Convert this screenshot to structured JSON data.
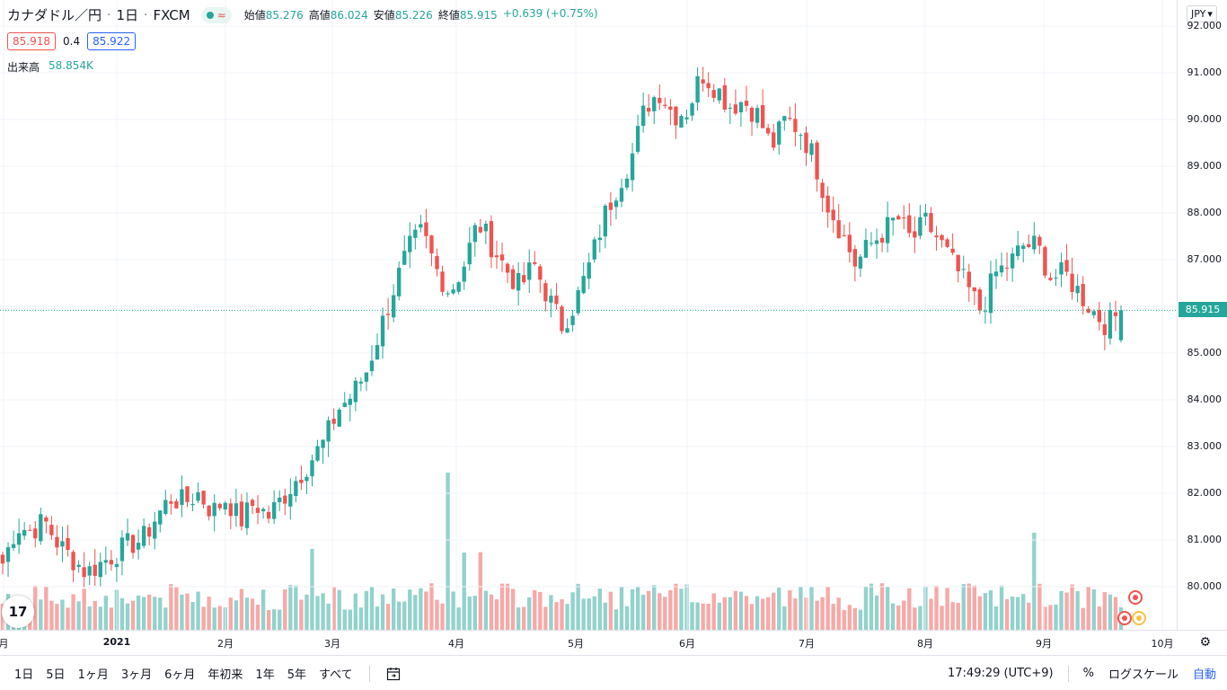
{
  "header": {
    "symbol": "カナダドル／円",
    "interval": "1日",
    "source": "FXCM",
    "wave_glyph": "≈",
    "ohlc": [
      {
        "label": "始値",
        "value": "85.276"
      },
      {
        "label": "高値",
        "value": "86.024"
      },
      {
        "label": "安値",
        "value": "85.226"
      },
      {
        "label": "終値",
        "value": "85.915"
      },
      {
        "label": "",
        "value": "+0.639 (+0.75%)"
      }
    ],
    "bid": "85.918",
    "spread": "0.4",
    "ask": "85.922",
    "volume_label": "出来高",
    "volume_value": "58.854K"
  },
  "price_scale": {
    "currency": "JPY",
    "currency_caret": "▾",
    "labels": [
      "92.000",
      "91.000",
      "90.000",
      "89.000",
      "88.000",
      "87.000",
      "86.000",
      "85.000",
      "84.000",
      "83.000",
      "82.000",
      "81.000",
      "80.000"
    ],
    "last_price": "85.915"
  },
  "time_scale": {
    "labels": [
      {
        "text": "月",
        "bold": false
      },
      {
        "text": "2021",
        "bold": true
      },
      {
        "text": "2月",
        "bold": false
      },
      {
        "text": "3月",
        "bold": false
      },
      {
        "text": "4月",
        "bold": false
      },
      {
        "text": "5月",
        "bold": false
      },
      {
        "text": "6月",
        "bold": false
      },
      {
        "text": "7月",
        "bold": false
      },
      {
        "text": "8月",
        "bold": false
      },
      {
        "text": "9月",
        "bold": false
      },
      {
        "text": "10月",
        "bold": false
      }
    ],
    "settings_icon": "gear-icon"
  },
  "bottom_bar": {
    "ranges": [
      "1日",
      "5日",
      "1ヶ月",
      "3ヶ月",
      "6ヶ月",
      "年初来",
      "1年",
      "5年",
      "すべて"
    ],
    "date_range_icon": "calendar-range-icon",
    "clock": "17:49:29 (UTC+9)",
    "percent": "%",
    "log_scale": "ログスケール",
    "auto": "自動"
  },
  "colors": {
    "up": "#26a69a",
    "down": "#ef5350",
    "vol_up": "#92d2cc",
    "vol_down": "#f7a9a7",
    "grid": "#f0f3fa",
    "accent": "#2962ff"
  },
  "logo_text": "17",
  "chart_data": {
    "type": "candlestick",
    "symbol": "CAD/JPY",
    "y_range": [
      79.4,
      92.2
    ],
    "x_range_months": [
      "2020-12",
      "2021-10"
    ],
    "candles_approx_close_path": [
      80.5,
      81.3,
      81.2,
      81.4,
      80.9,
      80.6,
      80.3,
      80.5,
      80.7,
      80.9,
      81.0,
      81.5,
      81.9,
      81.8,
      82.0,
      81.6,
      81.9,
      81.4,
      81.8,
      81.5,
      81.9,
      82.3,
      82.7,
      83.1,
      83.8,
      84.1,
      84.6,
      85.5,
      86.4,
      87.2,
      87.6,
      86.8,
      86.3,
      86.9,
      87.8,
      87.3,
      86.8,
      86.4,
      86.9,
      86.2,
      85.6,
      86.1,
      86.9,
      87.9,
      88.6,
      89.2,
      90.3,
      90.6,
      90.1,
      90.2,
      91.0,
      90.7,
      90.3,
      90.4,
      90.1,
      89.4,
      90.0,
      89.8,
      89.2,
      88.2,
      87.6,
      86.9,
      87.3,
      87.6,
      87.9,
      87.4,
      87.8,
      87.4,
      86.9,
      86.4,
      85.9,
      86.7,
      86.9,
      87.3,
      87.3,
      86.6,
      86.7,
      86.3,
      85.9,
      85.6,
      85.9
    ]
  }
}
